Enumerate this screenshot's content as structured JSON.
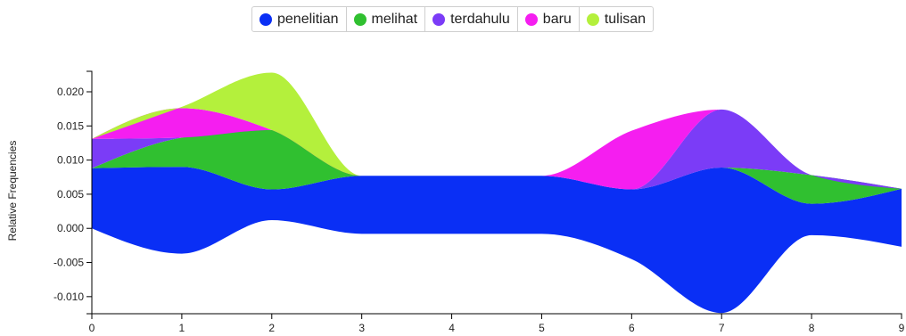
{
  "chart_data": {
    "type": "area",
    "subtype": "streamgraph",
    "ylabel": "Relative Frequencies",
    "xlabel": "",
    "xlim": [
      0,
      9
    ],
    "ylim": [
      -0.0125,
      0.023
    ],
    "x": [
      0,
      1,
      2,
      3,
      4,
      5,
      6,
      7,
      8,
      9
    ],
    "x_ticks": [
      "0",
      "1",
      "2",
      "3",
      "4",
      "5",
      "6",
      "7",
      "8",
      "9"
    ],
    "y_ticks": [
      "0.020",
      "0.015",
      "0.010",
      "0.005",
      "0.000",
      "-0.005",
      "-0.010"
    ],
    "y_tick_values": [
      0.02,
      0.015,
      0.01,
      0.005,
      0.0,
      -0.005,
      -0.01
    ],
    "baseline": [
      0.0,
      -0.0037,
      0.0012,
      -0.0008,
      -0.0008,
      -0.0008,
      -0.0045,
      -0.0124,
      -0.001,
      -0.0027
    ],
    "legend_position": "top-center",
    "series": [
      {
        "name": "penelitian",
        "color": "#0a2ff5",
        "values": [
          0.0088,
          0.0127,
          0.0045,
          0.0085,
          0.0085,
          0.0085,
          0.0102,
          0.0213,
          0.0046,
          0.0085
        ]
      },
      {
        "name": "melihat",
        "color": "#30c030",
        "values": [
          0.0,
          0.0043,
          0.0087,
          0.0,
          0.0,
          0.0,
          0.0,
          0.0,
          0.0042,
          0.0
        ]
      },
      {
        "name": "terdahulu",
        "color": "#7b3cf7",
        "values": [
          0.0043,
          0.0,
          0.0,
          0.0,
          0.0,
          0.0,
          0.0,
          0.0085,
          0.0,
          0.0
        ]
      },
      {
        "name": "baru",
        "color": "#f51ef0",
        "values": [
          0.0,
          0.0043,
          0.0,
          0.0,
          0.0,
          0.0,
          0.0086,
          0.0,
          0.0,
          0.0
        ]
      },
      {
        "name": "tulisan",
        "color": "#b4f03c",
        "values": [
          0.0,
          0.0002,
          0.0084,
          0.0,
          0.0,
          0.0,
          0.0,
          0.0,
          0.0,
          0.0
        ]
      }
    ]
  }
}
